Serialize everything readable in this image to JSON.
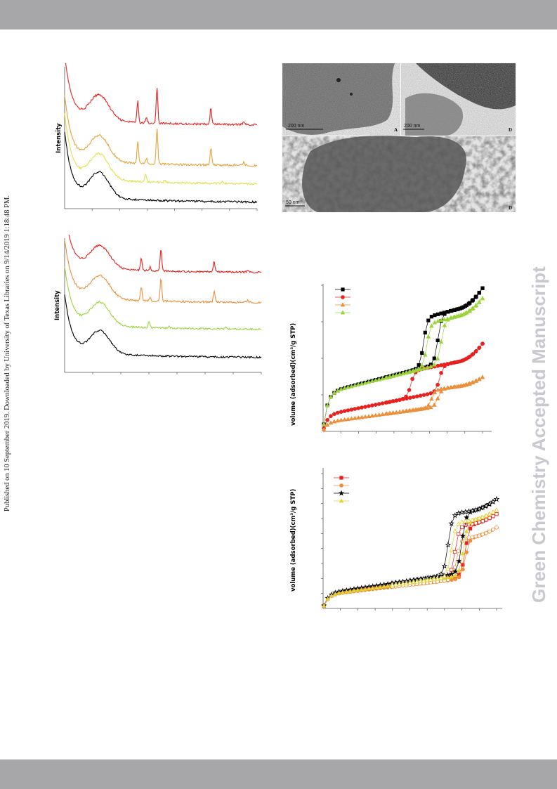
{
  "page": {
    "published_line": "Published on 10 September 2019. Downloaded by University of Texas Libraries on 9/14/2019 1:18:48 PM.",
    "watermark": "Green Chemistry Accepted Manuscript"
  },
  "tem": {
    "panels": [
      {
        "letter": "A",
        "scale": "200 nm"
      },
      {
        "letter": "B",
        "scale": "200 nm"
      },
      {
        "letter": "D",
        "scale": "50 nm"
      }
    ]
  },
  "chart_data": [
    {
      "type": "line",
      "ylabel": "Intensity",
      "series": [
        {
          "color": "#e8201e",
          "peaks": [
            [
              0.38,
              0.32
            ],
            [
              0.425,
              0.08
            ],
            [
              0.48,
              0.53
            ],
            [
              0.76,
              0.25
            ],
            [
              0.93,
              0.05
            ]
          ]
        },
        {
          "color": "#e6a33a",
          "peaks": [
            [
              0.38,
              0.32
            ],
            [
              0.425,
              0.08
            ],
            [
              0.48,
              0.53
            ],
            [
              0.76,
              0.25
            ],
            [
              0.93,
              0.05
            ]
          ]
        },
        {
          "color": "#e2e14c",
          "peaks": [
            [
              0.42,
              0.12
            ],
            [
              0.52,
              0.04
            ],
            [
              0.82,
              0.02
            ]
          ]
        },
        {
          "color": "#000000",
          "peaks": []
        }
      ]
    },
    {
      "type": "line",
      "ylabel": "Intensity",
      "series": [
        {
          "color": "#e8201e",
          "peaks": [
            [
              0.39,
              0.22
            ],
            [
              0.435,
              0.06
            ],
            [
              0.49,
              0.38
            ],
            [
              0.76,
              0.18
            ],
            [
              0.93,
              0.04
            ]
          ]
        },
        {
          "color": "#ec8f3a",
          "peaks": [
            [
              0.39,
              0.22
            ],
            [
              0.435,
              0.06
            ],
            [
              0.49,
              0.38
            ],
            [
              0.76,
              0.18
            ],
            [
              0.93,
              0.04
            ]
          ]
        },
        {
          "color": "#9ad43b",
          "peaks": [
            [
              0.43,
              0.1
            ],
            [
              0.53,
              0.03
            ],
            [
              0.82,
              0.02
            ]
          ]
        },
        {
          "color": "#000000",
          "peaks": []
        }
      ]
    },
    {
      "type": "scatter",
      "ylabel": "volume (adsorbed)(cm³/g STP)",
      "series": [
        {
          "color": "#000000",
          "marker": "square",
          "base": 0.26,
          "lin": 0.28,
          "jump": 0.34,
          "p_ads": 0.72,
          "p_des": 0.63,
          "end": 0.1
        },
        {
          "color": "#e8201e",
          "marker": "circle",
          "base": 0.11,
          "lin": 0.22,
          "jump": 0.18,
          "p_ads": 0.73,
          "p_des": 0.55,
          "end": 0.09
        },
        {
          "color": "#ec8f3a",
          "marker": "triangle",
          "base": 0.06,
          "lin": 0.15,
          "jump": 0.12,
          "p_ads": 0.72,
          "p_des": 0.68,
          "end": 0.04
        },
        {
          "color": "#9ad43b",
          "marker": "triangle",
          "base": 0.26,
          "lin": 0.27,
          "jump": 0.3,
          "p_ads": 0.74,
          "p_des": 0.65,
          "end": 0.08
        }
      ]
    },
    {
      "type": "scatter",
      "ylabel": "volume (adsorbed)(cm³/g STP)",
      "series": [
        {
          "color": "#e8201e",
          "marker": "square",
          "base": 0.1,
          "lin": 0.17,
          "jump": 0.38,
          "p_ads": 0.82,
          "p_des": 0.76,
          "end": 0.05
        },
        {
          "color": "#ec8f3a",
          "marker": "circle",
          "base": 0.1,
          "lin": 0.15,
          "jump": 0.3,
          "p_ads": 0.82,
          "p_des": 0.77,
          "end": 0.05
        },
        {
          "color": "#000000",
          "marker": "star",
          "base": 0.11,
          "lin": 0.19,
          "jump": 0.45,
          "p_ads": 0.8,
          "p_des": 0.72,
          "end": 0.06
        },
        {
          "color": "#e2d23a",
          "marker": "triangle",
          "base": 0.1,
          "lin": 0.18,
          "jump": 0.4,
          "p_ads": 0.81,
          "p_des": 0.74,
          "end": 0.05
        }
      ]
    }
  ]
}
